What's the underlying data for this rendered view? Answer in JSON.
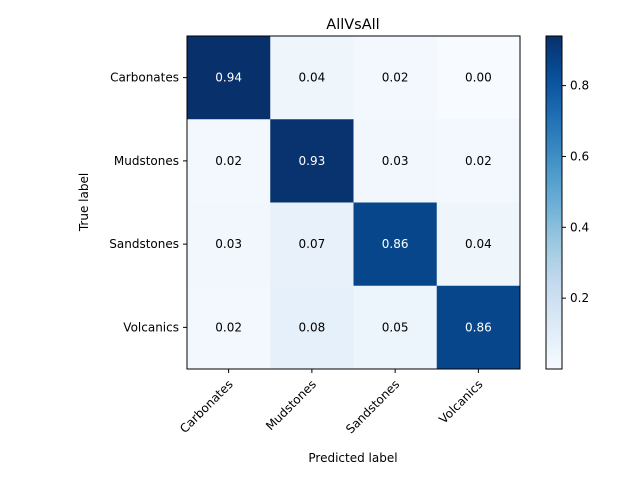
{
  "chart_data": {
    "type": "heatmap",
    "title": "AllVsAll",
    "xlabel": "Predicted label",
    "ylabel": "True label",
    "x_categories": [
      "Carbonates",
      "Mudstones",
      "Sandstones",
      "Volcanics"
    ],
    "y_categories": [
      "Carbonates",
      "Mudstones",
      "Sandstones",
      "Volcanics"
    ],
    "values": [
      [
        0.94,
        0.04,
        0.02,
        0.0
      ],
      [
        0.02,
        0.93,
        0.03,
        0.02
      ],
      [
        0.03,
        0.07,
        0.86,
        0.04
      ],
      [
        0.02,
        0.08,
        0.05,
        0.86
      ]
    ],
    "colormap": "Blues",
    "colorbar": {
      "min": 0.0,
      "max": 0.94,
      "ticks": [
        "0.2",
        "0.4",
        "0.6",
        "0.8"
      ]
    }
  }
}
